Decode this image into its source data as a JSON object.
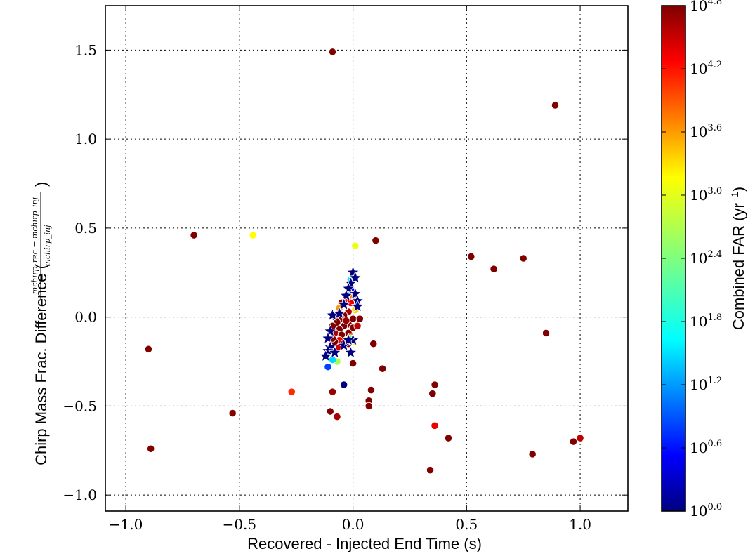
{
  "chart_data": {
    "type": "scatter",
    "title": "",
    "xlabel": "Recovered - Injected End Time (s)",
    "ylabel": "Chirp Mass Frac. Difference (",
    "ylabel_math": {
      "numerator": "mchirp_rec − mchirp_inj",
      "denominator": "mchirp_inj",
      "close": ")"
    },
    "xlim": [
      -1.09,
      1.21
    ],
    "ylim": [
      -1.09,
      1.75
    ],
    "xticks": [
      -1.0,
      -0.5,
      0.0,
      0.5,
      1.0
    ],
    "xtick_labels": [
      "−1.0",
      "−0.5",
      "0.0",
      "0.5",
      "1.0"
    ],
    "yticks": [
      -1.0,
      -0.5,
      0.0,
      0.5,
      1.0,
      1.5
    ],
    "ytick_labels": [
      "−1.0",
      "−0.5",
      "0.0",
      "0.5",
      "1.0",
      "1.5"
    ],
    "grid": true,
    "colorbar": {
      "label": "Combined FAR (yr",
      "label_sup": "−1",
      "label_close": ")",
      "scale": "log10",
      "range_exp": [
        0.0,
        4.8
      ],
      "colormap": "jet",
      "tick_exps": [
        "0.0",
        "0.6",
        "1.2",
        "1.8",
        "2.4",
        "3.0",
        "3.6",
        "4.2",
        "4.8"
      ],
      "tick_base": "10"
    },
    "series": [
      {
        "marker": "circle",
        "points": [
          {
            "x": -0.09,
            "y": 1.49,
            "far_exp": 4.8
          },
          {
            "x": 0.89,
            "y": 1.19,
            "far_exp": 4.8
          },
          {
            "x": -0.7,
            "y": 0.46,
            "far_exp": 4.8
          },
          {
            "x": -0.44,
            "y": 0.46,
            "far_exp": 3.0
          },
          {
            "x": 0.01,
            "y": 0.4,
            "far_exp": 2.9
          },
          {
            "x": 0.1,
            "y": 0.43,
            "far_exp": 4.8
          },
          {
            "x": 0.52,
            "y": 0.34,
            "far_exp": 4.8
          },
          {
            "x": 0.62,
            "y": 0.27,
            "far_exp": 4.8
          },
          {
            "x": 0.75,
            "y": 0.33,
            "far_exp": 4.8
          },
          {
            "x": 0.85,
            "y": -0.09,
            "far_exp": 4.8
          },
          {
            "x": -0.9,
            "y": -0.18,
            "far_exp": 4.8
          },
          {
            "x": -0.89,
            "y": -0.74,
            "far_exp": 4.8
          },
          {
            "x": -0.53,
            "y": -0.54,
            "far_exp": 4.8
          },
          {
            "x": -0.27,
            "y": -0.42,
            "far_exp": 4.0
          },
          {
            "x": -0.09,
            "y": -0.42,
            "far_exp": 4.7
          },
          {
            "x": -0.04,
            "y": -0.38,
            "far_exp": 0.0
          },
          {
            "x": -0.1,
            "y": -0.53,
            "far_exp": 4.8
          },
          {
            "x": -0.07,
            "y": -0.56,
            "far_exp": 4.6
          },
          {
            "x": 0.0,
            "y": -0.26,
            "far_exp": 4.8
          },
          {
            "x": 0.09,
            "y": -0.15,
            "far_exp": 4.8
          },
          {
            "x": 0.13,
            "y": -0.29,
            "far_exp": 4.8
          },
          {
            "x": 0.08,
            "y": -0.41,
            "far_exp": 4.8
          },
          {
            "x": 0.07,
            "y": -0.47,
            "far_exp": 4.8
          },
          {
            "x": 0.07,
            "y": -0.5,
            "far_exp": 4.8
          },
          {
            "x": 0.36,
            "y": -0.38,
            "far_exp": 4.8
          },
          {
            "x": 0.35,
            "y": -0.43,
            "far_exp": 4.8
          },
          {
            "x": 0.36,
            "y": -0.61,
            "far_exp": 4.3
          },
          {
            "x": 0.42,
            "y": -0.68,
            "far_exp": 4.8
          },
          {
            "x": 0.34,
            "y": -0.86,
            "far_exp": 4.8
          },
          {
            "x": 0.79,
            "y": -0.77,
            "far_exp": 4.8
          },
          {
            "x": 0.97,
            "y": -0.7,
            "far_exp": 4.8
          },
          {
            "x": 1.0,
            "y": -0.68,
            "far_exp": 4.5
          },
          {
            "x": -0.11,
            "y": -0.28,
            "far_exp": 0.9
          },
          {
            "x": -0.07,
            "y": -0.25,
            "far_exp": 2.6
          },
          {
            "x": -0.09,
            "y": -0.24,
            "far_exp": 1.6
          },
          {
            "x": -0.1,
            "y": -0.19,
            "far_exp": 1.4
          },
          {
            "x": -0.01,
            "y": 0.21,
            "far_exp": 1.7
          },
          {
            "x": 0.0,
            "y": 0.15,
            "far_exp": 0.6
          },
          {
            "x": -0.02,
            "y": 0.14,
            "far_exp": 1.8
          },
          {
            "x": 0.0,
            "y": 0.11,
            "far_exp": 3.6
          },
          {
            "x": -0.03,
            "y": 0.1,
            "far_exp": 4.2
          },
          {
            "x": 0.02,
            "y": 0.07,
            "far_exp": 3.8
          },
          {
            "x": -0.01,
            "y": 0.08,
            "far_exp": 4.3
          },
          {
            "x": -0.05,
            "y": 0.08,
            "far_exp": 4.7
          },
          {
            "x": -0.06,
            "y": 0.05,
            "far_exp": 3.5
          },
          {
            "x": 0.01,
            "y": 0.04,
            "far_exp": 3.2
          },
          {
            "x": -0.02,
            "y": 0.03,
            "far_exp": 4.6
          },
          {
            "x": -0.04,
            "y": 0.01,
            "far_exp": 4.8
          },
          {
            "x": -0.08,
            "y": 0.0,
            "far_exp": 4.8
          },
          {
            "x": -0.05,
            "y": -0.01,
            "far_exp": 4.8
          },
          {
            "x": 0.0,
            "y": -0.01,
            "far_exp": 4.8
          },
          {
            "x": 0.03,
            "y": -0.01,
            "far_exp": 4.8
          },
          {
            "x": -0.07,
            "y": -0.03,
            "far_exp": 4.8
          },
          {
            "x": -0.02,
            "y": -0.04,
            "far_exp": 4.7
          },
          {
            "x": -0.09,
            "y": -0.05,
            "far_exp": 4.8
          },
          {
            "x": -0.04,
            "y": -0.05,
            "far_exp": 4.8
          },
          {
            "x": 0.0,
            "y": -0.06,
            "far_exp": 4.8
          },
          {
            "x": 0.02,
            "y": -0.05,
            "far_exp": 4.5
          },
          {
            "x": -0.06,
            "y": -0.07,
            "far_exp": 4.8
          },
          {
            "x": -0.08,
            "y": -0.09,
            "far_exp": 4.6
          },
          {
            "x": -0.02,
            "y": -0.09,
            "far_exp": 4.8
          },
          {
            "x": -0.05,
            "y": -0.1,
            "far_exp": 4.8
          },
          {
            "x": -0.01,
            "y": -0.11,
            "far_exp": 3.9
          },
          {
            "x": -0.03,
            "y": -0.13,
            "far_exp": 2.8
          },
          {
            "x": -0.06,
            "y": -0.13,
            "far_exp": 4.2
          },
          {
            "x": -0.08,
            "y": -0.14,
            "far_exp": 4.8
          },
          {
            "x": -0.04,
            "y": -0.15,
            "far_exp": 4.5
          },
          {
            "x": -0.02,
            "y": -0.15,
            "far_exp": 4.8
          },
          {
            "x": -0.06,
            "y": -0.17,
            "far_exp": 4.4
          },
          {
            "x": -0.01,
            "y": -0.12,
            "far_exp": 2.2
          },
          {
            "x": 0.0,
            "y": -0.14,
            "far_exp": 3.0
          },
          {
            "x": -0.09,
            "y": -0.12,
            "far_exp": 4.8
          },
          {
            "x": -0.03,
            "y": -0.02,
            "far_exp": 4.7
          }
        ]
      },
      {
        "marker": "star",
        "points": [
          {
            "x": 0.0,
            "y": 0.25,
            "far_exp": 0.0
          },
          {
            "x": 0.01,
            "y": 0.22,
            "far_exp": 0.0
          },
          {
            "x": -0.01,
            "y": 0.19,
            "far_exp": 0.0
          },
          {
            "x": -0.02,
            "y": 0.16,
            "far_exp": 0.0
          },
          {
            "x": 0.01,
            "y": 0.13,
            "far_exp": 0.0
          },
          {
            "x": -0.03,
            "y": 0.12,
            "far_exp": 0.0
          },
          {
            "x": 0.02,
            "y": 0.09,
            "far_exp": 0.0
          },
          {
            "x": -0.04,
            "y": 0.07,
            "far_exp": 0.0
          },
          {
            "x": 0.02,
            "y": 0.06,
            "far_exp": 0.0
          },
          {
            "x": -0.09,
            "y": 0.01,
            "far_exp": 0.0
          },
          {
            "x": -0.06,
            "y": 0.02,
            "far_exp": 0.0
          },
          {
            "x": -0.1,
            "y": -0.08,
            "far_exp": 0.0
          },
          {
            "x": -0.11,
            "y": -0.12,
            "far_exp": 0.0
          },
          {
            "x": -0.1,
            "y": -0.17,
            "far_exp": 0.0
          },
          {
            "x": -0.11,
            "y": -0.19,
            "far_exp": 0.0
          },
          {
            "x": -0.12,
            "y": -0.22,
            "far_exp": 0.0
          },
          {
            "x": -0.08,
            "y": -0.2,
            "far_exp": 0.0
          },
          {
            "x": -0.04,
            "y": -0.16,
            "far_exp": 0.0
          },
          {
            "x": -0.01,
            "y": -0.2,
            "far_exp": 0.0
          },
          {
            "x": 0.0,
            "y": -0.13,
            "far_exp": 0.0
          },
          {
            "x": -0.02,
            "y": -0.13,
            "far_exp": 0.0
          }
        ]
      }
    ]
  }
}
